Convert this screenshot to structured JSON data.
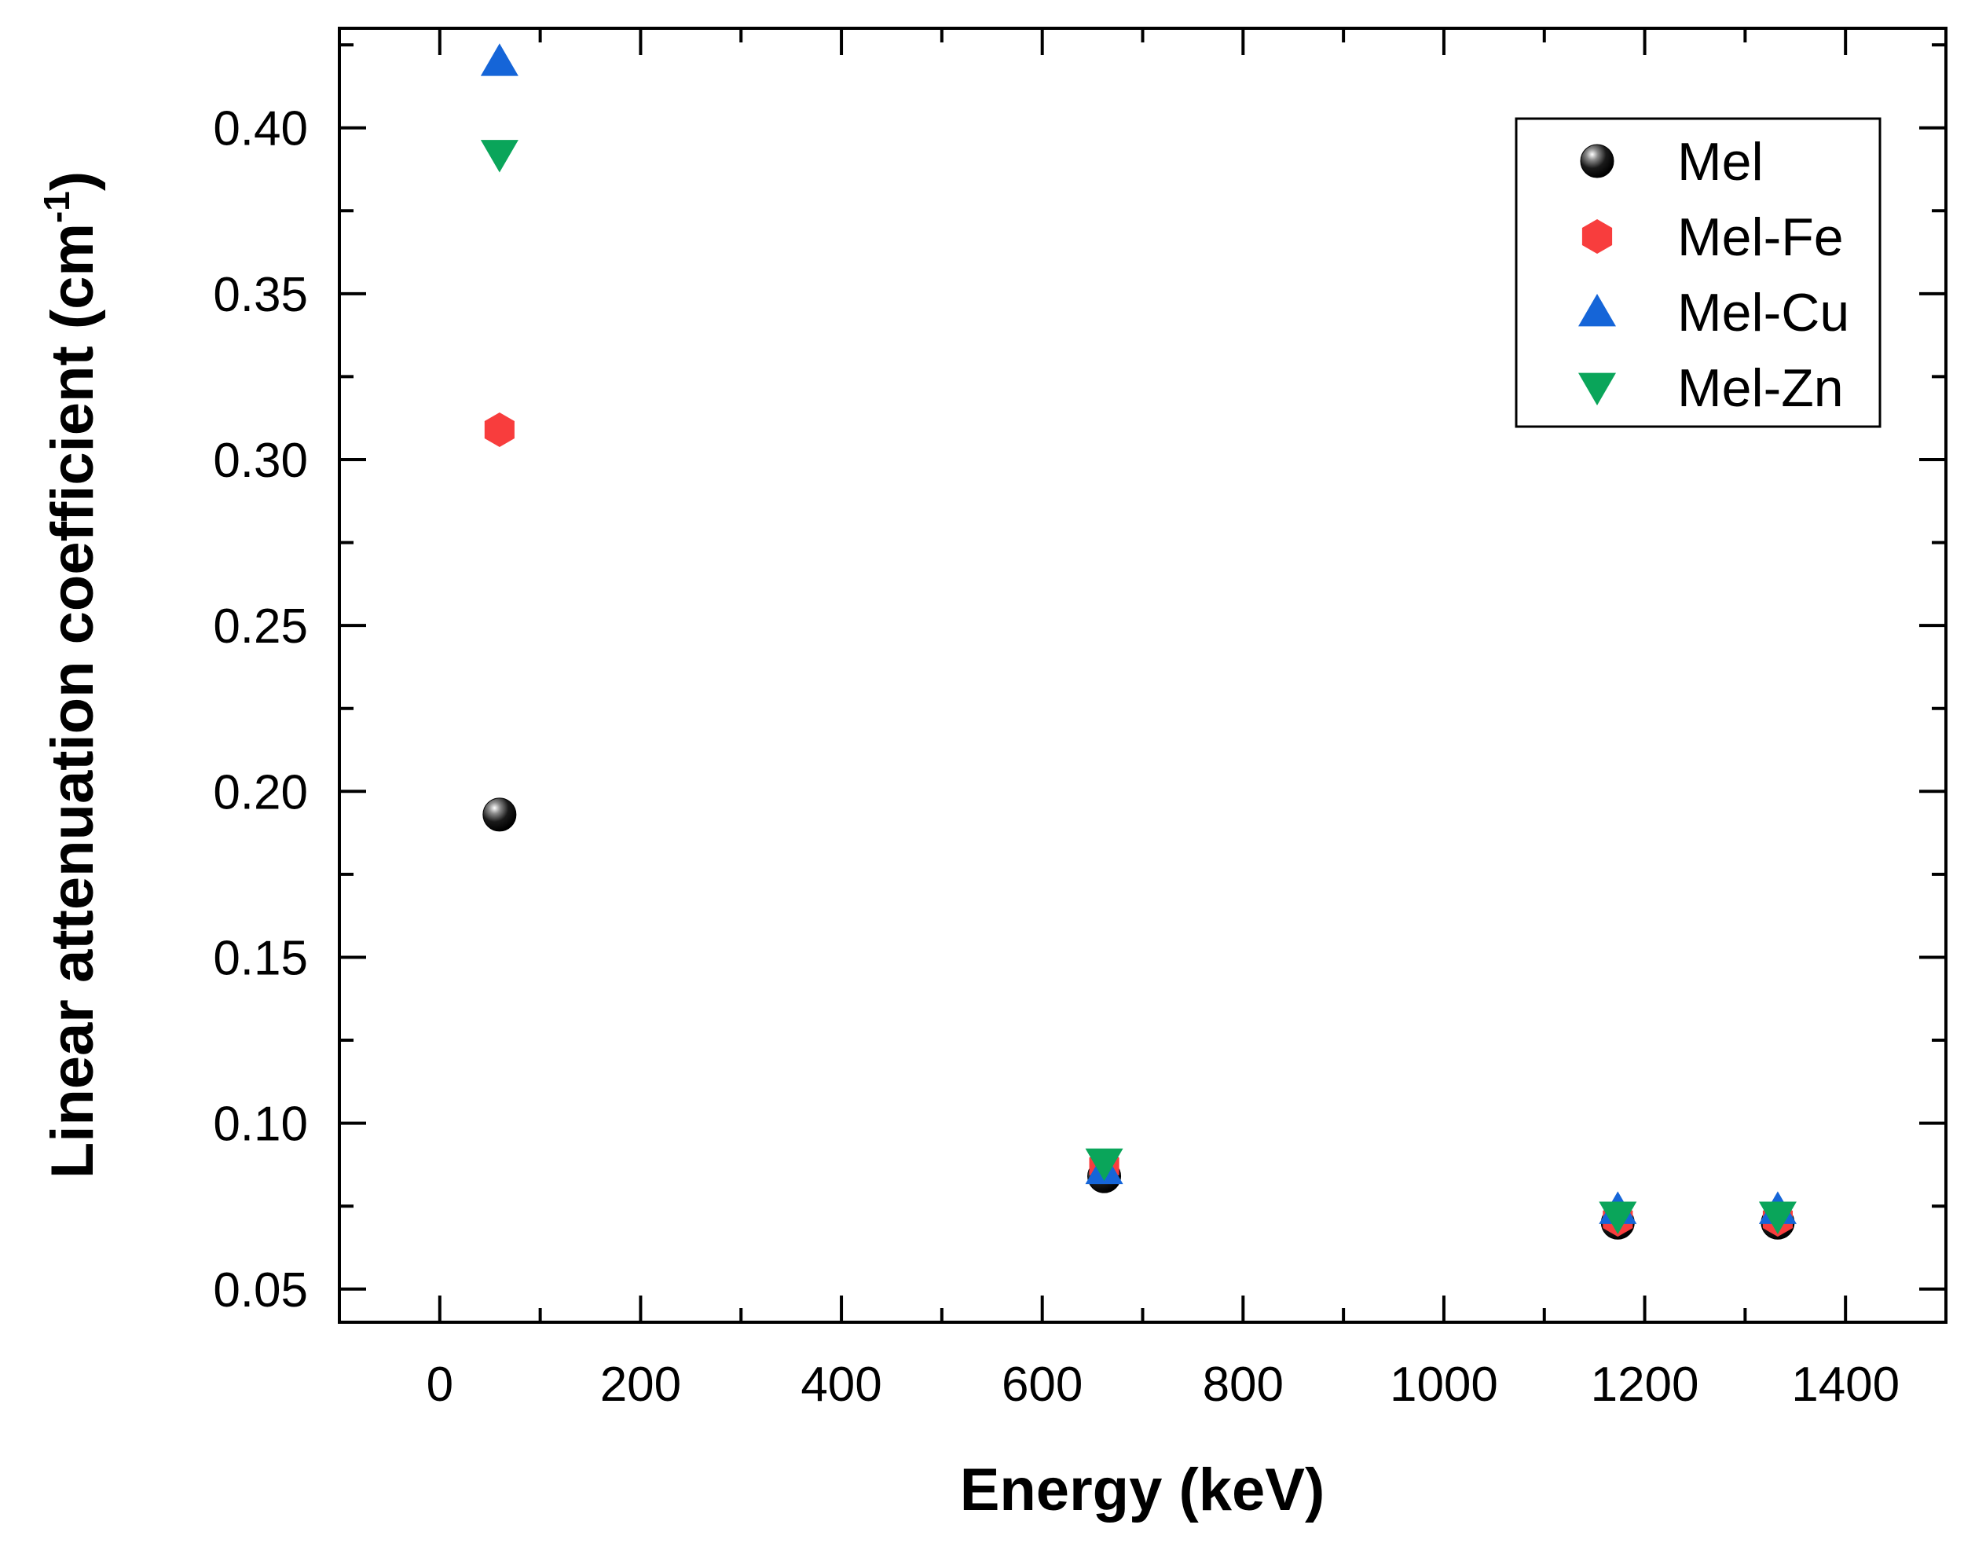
{
  "chart_data": {
    "type": "scatter",
    "title": "",
    "xlabel": "Energy (keV)",
    "ylabel": {
      "main": "Linear attenuation coefficient (cm",
      "superscript": "-1",
      "close": ")"
    },
    "xlim": [
      -100,
      1500
    ],
    "ylim": [
      0.04,
      0.43
    ],
    "xticks": [
      0,
      200,
      400,
      600,
      800,
      1000,
      1200,
      1400
    ],
    "xtick_labels": [
      "0",
      "200",
      "400",
      "600",
      "800",
      "1000",
      "1200",
      "1400"
    ],
    "yticks": [
      0.05,
      0.1,
      0.15,
      0.2,
      0.25,
      0.3,
      0.35,
      0.4
    ],
    "ytick_labels": [
      "0.05",
      "0.10",
      "0.15",
      "0.20",
      "0.25",
      "0.30",
      "0.35",
      "0.40"
    ],
    "grid": false,
    "legend_position": "top-right",
    "series": [
      {
        "name": "Mel",
        "marker": "sphere",
        "color": "#000000",
        "x": [
          59.5,
          661.7,
          1173.2,
          1332.5
        ],
        "y": [
          0.193,
          0.084,
          0.07,
          0.07
        ]
      },
      {
        "name": "Mel-Fe",
        "marker": "hexagon",
        "color": "#f83d3d",
        "x": [
          59.5,
          661.7,
          1173.2,
          1332.5
        ],
        "y": [
          0.309,
          0.087,
          0.071,
          0.071
        ]
      },
      {
        "name": "Mel-Cu",
        "marker": "triangle-up",
        "color": "#1565d8",
        "x": [
          59.5,
          661.7,
          1173.2,
          1332.5
        ],
        "y": [
          0.42,
          0.086,
          0.074,
          0.074
        ]
      },
      {
        "name": "Mel-Zn",
        "marker": "triangle-down",
        "color": "#0aa55a",
        "x": [
          59.5,
          661.7,
          1173.2,
          1332.5
        ],
        "y": [
          0.392,
          0.088,
          0.072,
          0.072
        ]
      }
    ]
  }
}
